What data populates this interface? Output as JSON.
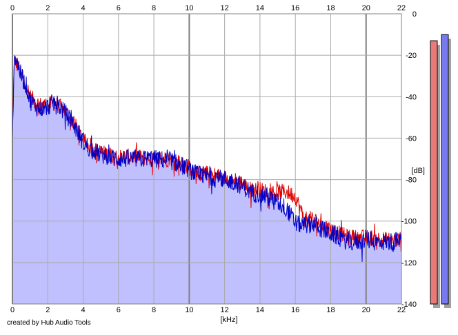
{
  "credit": "created by Hub Audio Tools",
  "chart_data": {
    "type": "line",
    "xlabel": "[kHz]",
    "ylabel": "[dB]",
    "xlim": [
      0,
      22
    ],
    "ylim": [
      -140,
      0
    ],
    "x_ticks": [
      0,
      2,
      4,
      6,
      8,
      10,
      12,
      14,
      16,
      18,
      20,
      22
    ],
    "x_tick_labels": [
      "0",
      "2",
      "4",
      "6",
      "8",
      "10",
      "12",
      "14",
      "16",
      "18",
      "20",
      "22"
    ],
    "y_ticks": [
      0,
      -20,
      -40,
      -60,
      -80,
      -100,
      -120,
      -140
    ],
    "y_tick_labels": [
      "0",
      "-20",
      "-40",
      "-60",
      "-80",
      "-100",
      "-120",
      "-140"
    ],
    "x_axis_position": "top and bottom",
    "y_axis_position": "right",
    "grid": true,
    "fill": "below blue series",
    "series": [
      {
        "color": "#e00000",
        "envelope_x": [
          0,
          0.1,
          0.3,
          0.5,
          0.8,
          1.0,
          1.5,
          2.0,
          2.4,
          3.0,
          3.5,
          4.0,
          4.5,
          5.0,
          6.0,
          7.0,
          8.0,
          9.0,
          10.0,
          10.5,
          11.0,
          12.0,
          12.5,
          13.0,
          13.5,
          14.0,
          14.5,
          15.0,
          15.5,
          16.0,
          16.5,
          17.0,
          17.5,
          18.0,
          18.5,
          19.0,
          19.5,
          20.0,
          20.5,
          21.0,
          21.5,
          22.0
        ],
        "envelope_y": [
          -58,
          -22,
          -25,
          -30,
          -35,
          -40,
          -44,
          -44,
          -43,
          -47,
          -53,
          -61,
          -65,
          -67,
          -69,
          -69,
          -70,
          -70,
          -74,
          -77,
          -77,
          -79,
          -80,
          -82,
          -85,
          -85,
          -86,
          -86,
          -86,
          -88,
          -99,
          -99,
          -102,
          -104,
          -106,
          -108,
          -108,
          -108,
          -108,
          -109,
          -109,
          -109
        ]
      },
      {
        "color": "#0000c8",
        "envelope_x": [
          0,
          0.1,
          0.3,
          0.5,
          0.8,
          1.0,
          1.5,
          2.0,
          2.4,
          3.0,
          3.5,
          4.0,
          4.5,
          5.0,
          6.0,
          7.0,
          8.0,
          9.0,
          10.0,
          10.5,
          11.0,
          12.0,
          12.5,
          13.0,
          13.5,
          14.0,
          14.5,
          15.0,
          15.5,
          16.0,
          16.5,
          17.0,
          17.5,
          18.0,
          18.5,
          19.0,
          19.5,
          20.0,
          20.5,
          21.0,
          21.5,
          22.0
        ],
        "envelope_y": [
          -60,
          -20,
          -24,
          -30,
          -35,
          -42,
          -46,
          -45,
          -42,
          -48,
          -54,
          -62,
          -66,
          -68,
          -70,
          -70,
          -70,
          -71,
          -75,
          -78,
          -78,
          -80,
          -81,
          -83,
          -86,
          -87,
          -89,
          -91,
          -94,
          -101,
          -102,
          -101,
          -104,
          -106,
          -108,
          -110,
          -110,
          -109,
          -110,
          -110,
          -110,
          -109
        ]
      }
    ],
    "level_meters": [
      {
        "color": "#e87a7a",
        "level_db": -13
      },
      {
        "color": "#7878f0",
        "level_db": -10
      }
    ]
  }
}
